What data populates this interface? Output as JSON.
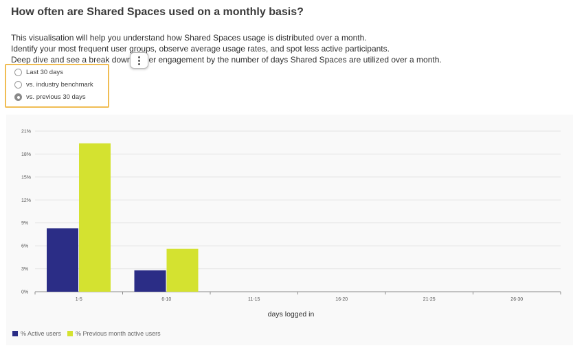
{
  "header": {
    "title": "How often are Shared Spaces used on a monthly basis?"
  },
  "description": {
    "line1": "This visualisation will help you understand how Shared Spaces usage is distributed over a month.",
    "line2": "Identify your most frequent user groups, observe average usage rates, and spot less active participants.",
    "line3_start": "Deep dive and see a break down",
    "line3_end": "er engagement by the number of days Shared Spaces are utilized over a month."
  },
  "comparison_options": {
    "options": [
      {
        "label": "Last 30 days",
        "checked": false
      },
      {
        "label": "vs. industry benchmark",
        "checked": false
      },
      {
        "label": "vs. previous 30 days",
        "checked": true
      }
    ]
  },
  "legend": {
    "active": "% Active users",
    "previous": "% Previous month active users"
  },
  "colors": {
    "active": "#2b2d86",
    "previous": "#d4e230",
    "highlight_border": "#f0bd54"
  },
  "chart_data": {
    "type": "bar",
    "categories": [
      "1-5",
      "6-10",
      "11-15",
      "16-20",
      "21-25",
      "26-30"
    ],
    "series": [
      {
        "name": "% Active users",
        "values": [
          8.3,
          2.8,
          0,
          0,
          0,
          0
        ]
      },
      {
        "name": "% Previous month active users",
        "values": [
          19.4,
          5.6,
          0,
          0,
          0,
          0
        ]
      }
    ],
    "xlabel": "days logged in",
    "ylabel": "",
    "ylim": [
      0,
      21
    ],
    "yticks": [
      "0%",
      "3%",
      "6%",
      "9%",
      "12%",
      "15%",
      "18%",
      "21%"
    ],
    "grid": true,
    "legend_position": "bottom-left"
  }
}
